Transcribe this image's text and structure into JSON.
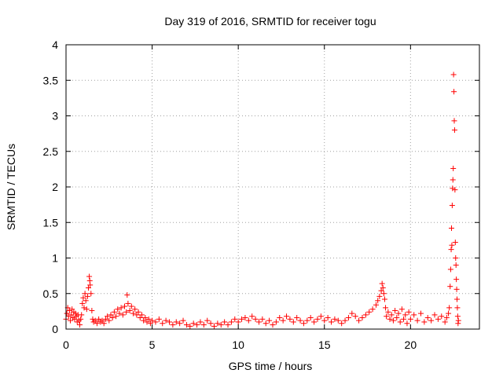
{
  "chart_data": {
    "type": "scatter",
    "title": "Day 319 of 2016, SRMTID for receiver togu",
    "xlabel": "GPS time / hours",
    "ylabel": "SRMTID / TECUs",
    "xlim": [
      0,
      24
    ],
    "ylim": [
      0,
      4
    ],
    "xticks": [
      0,
      5,
      10,
      15,
      20
    ],
    "yticks": [
      0,
      0.5,
      1,
      1.5,
      2,
      2.5,
      3,
      3.5,
      4
    ],
    "grid": true,
    "marker": "+",
    "color": "#ff0000",
    "series": [
      {
        "name": "SRMTID",
        "points": [
          [
            0.0,
            0.14
          ],
          [
            0.05,
            0.22
          ],
          [
            0.1,
            0.3
          ],
          [
            0.15,
            0.18
          ],
          [
            0.2,
            0.26
          ],
          [
            0.25,
            0.12
          ],
          [
            0.3,
            0.2
          ],
          [
            0.35,
            0.28
          ],
          [
            0.4,
            0.16
          ],
          [
            0.45,
            0.24
          ],
          [
            0.5,
            0.14
          ],
          [
            0.55,
            0.22
          ],
          [
            0.6,
            0.18
          ],
          [
            0.65,
            0.1
          ],
          [
            0.7,
            0.2
          ],
          [
            0.75,
            0.12
          ],
          [
            0.8,
            0.06
          ],
          [
            0.85,
            0.14
          ],
          [
            0.9,
            0.2
          ],
          [
            0.95,
            0.36
          ],
          [
            1.0,
            0.44
          ],
          [
            1.05,
            0.3
          ],
          [
            1.1,
            0.5
          ],
          [
            1.15,
            0.4
          ],
          [
            1.2,
            0.28
          ],
          [
            1.25,
            0.46
          ],
          [
            1.3,
            0.58
          ],
          [
            1.35,
            0.74
          ],
          [
            1.38,
            0.68
          ],
          [
            1.4,
            0.62
          ],
          [
            1.45,
            0.5
          ],
          [
            1.5,
            0.26
          ],
          [
            1.55,
            0.14
          ],
          [
            1.6,
            0.1
          ],
          [
            1.7,
            0.12
          ],
          [
            1.8,
            0.08
          ],
          [
            1.9,
            0.14
          ],
          [
            2.0,
            0.1
          ],
          [
            2.1,
            0.12
          ],
          [
            2.2,
            0.08
          ],
          [
            2.3,
            0.14
          ],
          [
            2.4,
            0.18
          ],
          [
            2.5,
            0.12
          ],
          [
            2.6,
            0.2
          ],
          [
            2.7,
            0.16
          ],
          [
            2.8,
            0.24
          ],
          [
            2.9,
            0.18
          ],
          [
            3.0,
            0.28
          ],
          [
            3.1,
            0.22
          ],
          [
            3.2,
            0.3
          ],
          [
            3.3,
            0.2
          ],
          [
            3.4,
            0.32
          ],
          [
            3.5,
            0.24
          ],
          [
            3.55,
            0.48
          ],
          [
            3.6,
            0.36
          ],
          [
            3.7,
            0.26
          ],
          [
            3.8,
            0.32
          ],
          [
            3.9,
            0.22
          ],
          [
            4.0,
            0.28
          ],
          [
            4.1,
            0.2
          ],
          [
            4.2,
            0.24
          ],
          [
            4.3,
            0.16
          ],
          [
            4.4,
            0.2
          ],
          [
            4.5,
            0.12
          ],
          [
            4.6,
            0.16
          ],
          [
            4.7,
            0.1
          ],
          [
            4.8,
            0.14
          ],
          [
            4.9,
            0.08
          ],
          [
            5.0,
            0.12
          ],
          [
            5.2,
            0.1
          ],
          [
            5.4,
            0.14
          ],
          [
            5.6,
            0.08
          ],
          [
            5.8,
            0.12
          ],
          [
            6.0,
            0.1
          ],
          [
            6.2,
            0.06
          ],
          [
            6.4,
            0.1
          ],
          [
            6.6,
            0.08
          ],
          [
            6.8,
            0.12
          ],
          [
            7.0,
            0.06
          ],
          [
            7.2,
            0.04
          ],
          [
            7.4,
            0.08
          ],
          [
            7.6,
            0.06
          ],
          [
            7.8,
            0.1
          ],
          [
            8.0,
            0.06
          ],
          [
            8.2,
            0.12
          ],
          [
            8.4,
            0.08
          ],
          [
            8.6,
            0.04
          ],
          [
            8.8,
            0.08
          ],
          [
            9.0,
            0.06
          ],
          [
            9.2,
            0.1
          ],
          [
            9.4,
            0.06
          ],
          [
            9.6,
            0.1
          ],
          [
            9.8,
            0.14
          ],
          [
            10.0,
            0.1
          ],
          [
            10.2,
            0.14
          ],
          [
            10.4,
            0.16
          ],
          [
            10.6,
            0.12
          ],
          [
            10.8,
            0.18
          ],
          [
            11.0,
            0.14
          ],
          [
            11.2,
            0.1
          ],
          [
            11.4,
            0.14
          ],
          [
            11.6,
            0.08
          ],
          [
            11.8,
            0.12
          ],
          [
            12.0,
            0.06
          ],
          [
            12.2,
            0.1
          ],
          [
            12.4,
            0.16
          ],
          [
            12.6,
            0.12
          ],
          [
            12.8,
            0.18
          ],
          [
            13.0,
            0.14
          ],
          [
            13.2,
            0.1
          ],
          [
            13.4,
            0.16
          ],
          [
            13.6,
            0.12
          ],
          [
            13.8,
            0.08
          ],
          [
            14.0,
            0.12
          ],
          [
            14.2,
            0.16
          ],
          [
            14.4,
            0.1
          ],
          [
            14.6,
            0.14
          ],
          [
            14.8,
            0.18
          ],
          [
            15.0,
            0.12
          ],
          [
            15.2,
            0.16
          ],
          [
            15.4,
            0.1
          ],
          [
            15.6,
            0.14
          ],
          [
            15.8,
            0.12
          ],
          [
            16.0,
            0.08
          ],
          [
            16.2,
            0.12
          ],
          [
            16.4,
            0.16
          ],
          [
            16.6,
            0.22
          ],
          [
            16.8,
            0.18
          ],
          [
            17.0,
            0.12
          ],
          [
            17.2,
            0.16
          ],
          [
            17.4,
            0.2
          ],
          [
            17.6,
            0.24
          ],
          [
            17.8,
            0.28
          ],
          [
            18.0,
            0.34
          ],
          [
            18.1,
            0.4
          ],
          [
            18.2,
            0.46
          ],
          [
            18.3,
            0.54
          ],
          [
            18.35,
            0.64
          ],
          [
            18.4,
            0.58
          ],
          [
            18.45,
            0.5
          ],
          [
            18.5,
            0.42
          ],
          [
            18.55,
            0.3
          ],
          [
            18.6,
            0.18
          ],
          [
            18.7,
            0.24
          ],
          [
            18.8,
            0.14
          ],
          [
            18.9,
            0.2
          ],
          [
            19.0,
            0.12
          ],
          [
            19.1,
            0.26
          ],
          [
            19.2,
            0.16
          ],
          [
            19.3,
            0.22
          ],
          [
            19.4,
            0.1
          ],
          [
            19.5,
            0.28
          ],
          [
            19.6,
            0.14
          ],
          [
            19.7,
            0.2
          ],
          [
            19.8,
            0.08
          ],
          [
            19.9,
            0.24
          ],
          [
            20.0,
            0.14
          ],
          [
            20.2,
            0.2
          ],
          [
            20.4,
            0.12
          ],
          [
            20.6,
            0.22
          ],
          [
            20.8,
            0.1
          ],
          [
            21.0,
            0.16
          ],
          [
            21.2,
            0.12
          ],
          [
            21.4,
            0.2
          ],
          [
            21.6,
            0.14
          ],
          [
            21.8,
            0.18
          ],
          [
            22.0,
            0.1
          ],
          [
            22.1,
            0.16
          ],
          [
            22.2,
            0.22
          ],
          [
            22.25,
            0.3
          ],
          [
            22.3,
            0.6
          ],
          [
            22.33,
            0.84
          ],
          [
            22.36,
            1.12
          ],
          [
            22.38,
            1.42
          ],
          [
            22.4,
            1.18
          ],
          [
            22.42,
            1.74
          ],
          [
            22.44,
            1.98
          ],
          [
            22.46,
            2.1
          ],
          [
            22.48,
            2.26
          ],
          [
            22.5,
            3.58
          ],
          [
            22.52,
            3.34
          ],
          [
            22.54,
            2.93
          ],
          [
            22.56,
            2.8
          ],
          [
            22.58,
            1.96
          ],
          [
            22.6,
            1.22
          ],
          [
            22.62,
            1.0
          ],
          [
            22.64,
            0.9
          ],
          [
            22.66,
            0.7
          ],
          [
            22.68,
            0.56
          ],
          [
            22.7,
            0.42
          ],
          [
            22.72,
            0.3
          ],
          [
            22.74,
            0.18
          ],
          [
            22.76,
            0.08
          ],
          [
            22.78,
            0.12
          ]
        ]
      }
    ]
  }
}
